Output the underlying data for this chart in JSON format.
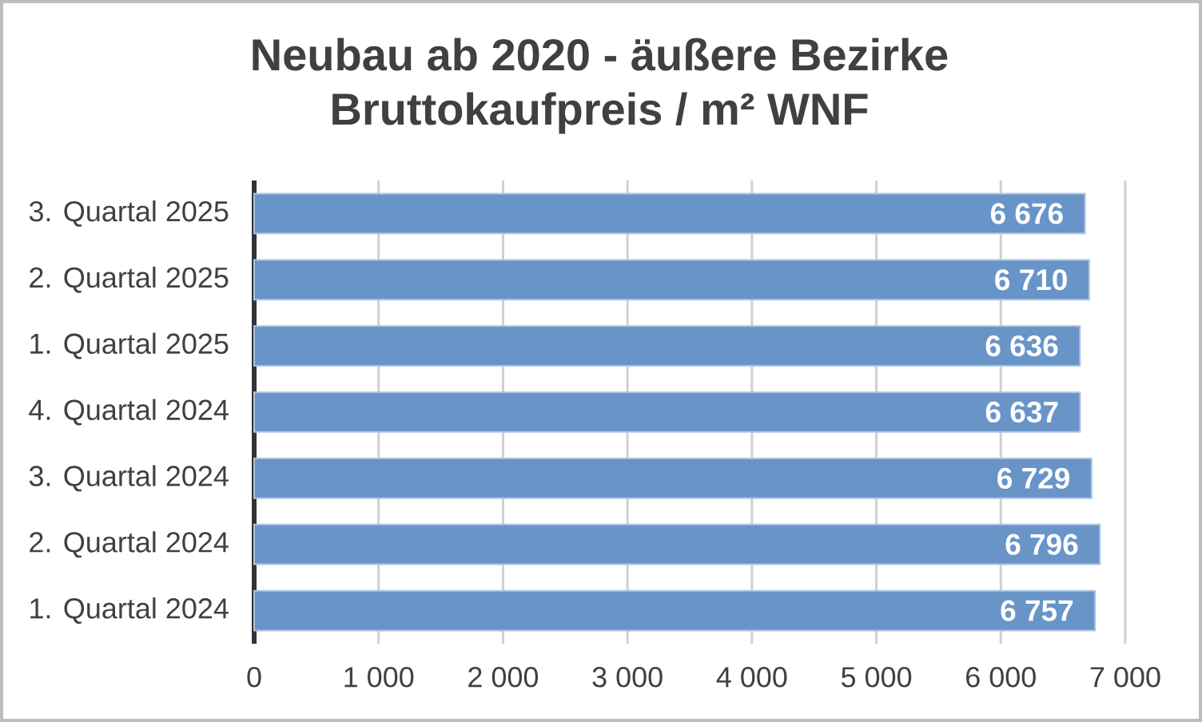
{
  "chart_data": {
    "type": "bar",
    "orientation": "horizontal",
    "title": "Neubau ab 2020 - äußere Bezirke",
    "subtitle": "Bruttokaufpreis / m² WNF",
    "categories": [
      "3. Quartal 2025",
      "2. Quartal 2025",
      "1. Quartal 2025",
      "4. Quartal 2024",
      "3. Quartal 2024",
      "2. Quartal 2024",
      "1. Quartal 2024"
    ],
    "values": [
      6676,
      6710,
      6636,
      6637,
      6729,
      6796,
      6757
    ],
    "value_labels": [
      "6 676",
      "6 710",
      "6 636",
      "6 637",
      "6 729",
      "6 796",
      "6 757"
    ],
    "color": "#6894c8",
    "xlim": [
      0,
      7000
    ],
    "xticks": [
      0,
      {
        "value": 1000,
        "label": "1 000"
      },
      {
        "value": 2000,
        "label": "2 000"
      },
      {
        "value": 3000,
        "label": "3 000"
      },
      {
        "value": 4000,
        "label": "4 000"
      },
      {
        "value": 5000,
        "label": "5 000"
      },
      {
        "value": 6000,
        "label": "6 000"
      },
      {
        "value": 7000,
        "label": "7 000"
      }
    ],
    "grid": "x"
  }
}
